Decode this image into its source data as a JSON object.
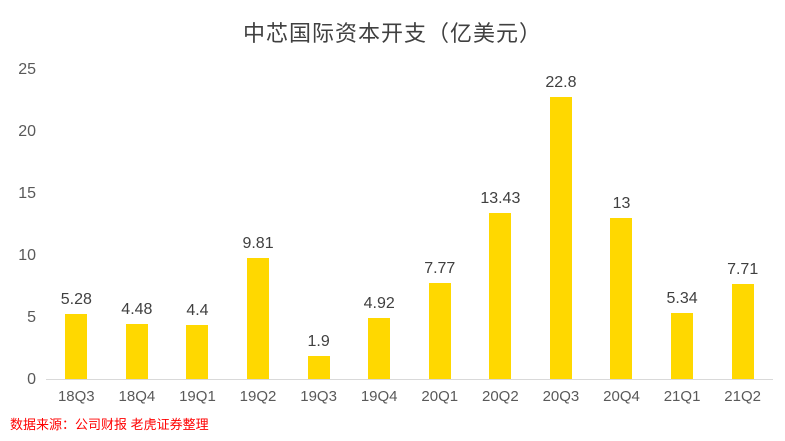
{
  "chart": {
    "title": "中芯国际资本开支（亿美元）",
    "source_note": "数据来源：公司财报 老虎证券整理"
  },
  "chart_data": {
    "type": "bar",
    "title": "中芯国际资本开支（亿美元）",
    "categories": [
      "18Q3",
      "18Q4",
      "19Q1",
      "19Q2",
      "19Q3",
      "19Q4",
      "20Q1",
      "20Q2",
      "20Q3",
      "20Q4",
      "21Q1",
      "21Q2"
    ],
    "values": [
      5.28,
      4.48,
      4.4,
      9.81,
      1.9,
      4.92,
      7.77,
      13.43,
      22.8,
      13,
      5.34,
      7.71
    ],
    "value_labels": [
      "5.28",
      "4.48",
      "4.4",
      "9.81",
      "1.9",
      "4.92",
      "7.77",
      "13.43",
      "22.8",
      "13",
      "5.34",
      "7.71"
    ],
    "xlabel": "",
    "ylabel": "",
    "ylim": [
      0,
      25
    ],
    "yticks": [
      0,
      5,
      10,
      15,
      20,
      25
    ],
    "bar_color": "#FFD800",
    "grid": false,
    "legend": "none",
    "source": "数据来源：公司财报 老虎证券整理"
  }
}
